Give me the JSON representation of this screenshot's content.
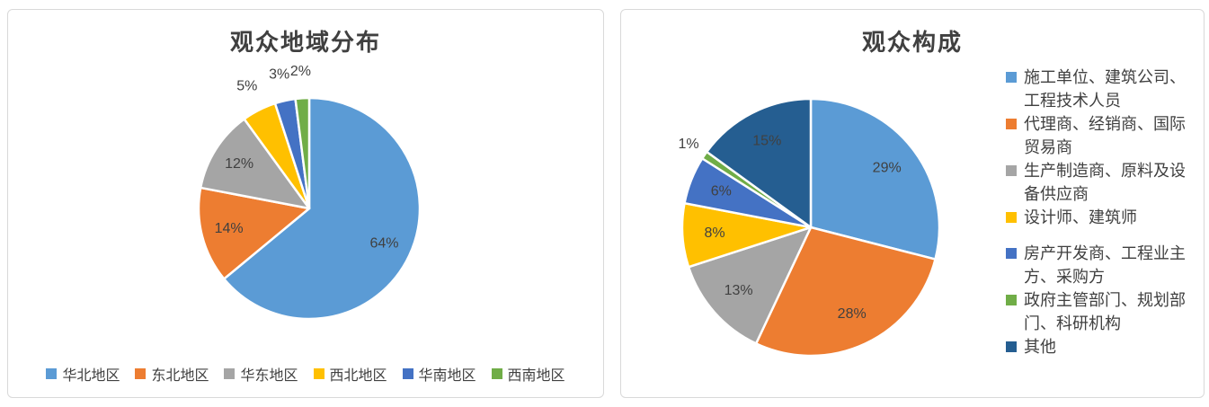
{
  "theme": {
    "text_color": "#404040",
    "card_border": "#D9D9D9",
    "card_background": "#FFFFFF",
    "slice_divider_color": "#FFFFFF"
  },
  "chart_data": [
    {
      "type": "pie",
      "title": "观众地域分布",
      "legend_position": "bottom",
      "start_angle_deg": 0,
      "direction": "clockwise",
      "labels": [
        "华北地区",
        "东北地区",
        "华东地区",
        "西北地区",
        "华南地区",
        "西南地区"
      ],
      "values": [
        64,
        14,
        12,
        5,
        3,
        2
      ],
      "data_labels": [
        "64%",
        "14%",
        "12%",
        "5%",
        "3%",
        "2%"
      ],
      "label_placement": [
        "inside",
        "inside",
        "inside",
        "outside",
        "outside",
        "outside"
      ],
      "colors": [
        "#5B9BD5",
        "#ED7D31",
        "#A5A5A5",
        "#FFC000",
        "#4472C4",
        "#70AD47"
      ]
    },
    {
      "type": "pie",
      "title": "观众构成",
      "legend_position": "right",
      "start_angle_deg": 0,
      "direction": "clockwise",
      "labels": [
        "施工单位、建筑公司、工程技术人员",
        "代理商、经销商、国际贸易商",
        "生产制造商、原料及设备供应商",
        "设计师、建筑师",
        "房产开发商、工程业主方、采购方",
        "政府主管部门、规划部门、科研机构",
        "其他"
      ],
      "values": [
        29,
        28,
        13,
        8,
        6,
        1,
        15
      ],
      "data_labels": [
        "29%",
        "28%",
        "13%",
        "8%",
        "6%",
        "1%",
        "15%"
      ],
      "label_placement": [
        "inside",
        "inside",
        "inside",
        "inside",
        "inside",
        "outside",
        "inside"
      ],
      "colors": [
        "#5B9BD5",
        "#ED7D31",
        "#A5A5A5",
        "#FFC000",
        "#4472C4",
        "#70AD47",
        "#255E91"
      ]
    }
  ]
}
